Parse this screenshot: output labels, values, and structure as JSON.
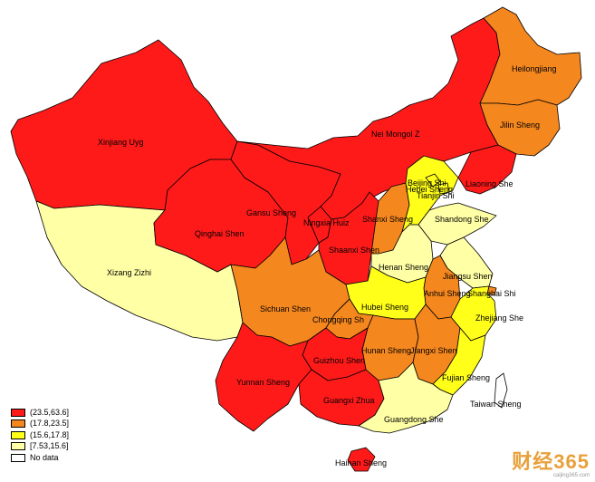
{
  "colors": {
    "class1": "#ff1a1a",
    "class2": "#f5871f",
    "class3": "#ffff1a",
    "class4": "#ffffa5",
    "nodata": "#ffffff"
  },
  "legend": [
    {
      "label": "(23.5,63.6]",
      "class": "class1"
    },
    {
      "label": "(17.8,23.5]",
      "class": "class2"
    },
    {
      "label": "(15.6,17.8]",
      "class": "class3"
    },
    {
      "label": "[7.53,15.6]",
      "class": "class4"
    },
    {
      "label": "No data",
      "class": "nodata"
    }
  ],
  "provinces": {
    "heilongjiang": {
      "label": "Heilongjiang",
      "class": "class2"
    },
    "jilin": {
      "label": "Jilin Sheng",
      "class": "class2"
    },
    "liaoning": {
      "label": "Liaoning She",
      "class": "class1"
    },
    "neimongol": {
      "label": "Nei Mongol Z",
      "class": "class1"
    },
    "xinjiang": {
      "label": "Xinjiang Uyg",
      "class": "class1"
    },
    "xizang": {
      "label": "Xizang Zizhi",
      "class": "class4"
    },
    "qinghai": {
      "label": "Qinghai Shen",
      "class": "class1"
    },
    "gansu": {
      "label": "Gansu Sheng",
      "class": "class1"
    },
    "ningxia": {
      "label": "Ningxia Huiz",
      "class": "class1"
    },
    "shaanxi": {
      "label": "Shaanxi Shen",
      "class": "class1"
    },
    "shanxi": {
      "label": "Shanxi Sheng",
      "class": "class2"
    },
    "beijing": {
      "label": "Beijing Shi",
      "class": "class3"
    },
    "tianjin": {
      "label": "Tianjin Shi",
      "class": "class3"
    },
    "hebei": {
      "label": "Hebei Sheng",
      "class": "class3"
    },
    "shandong": {
      "label": "Shandong She",
      "class": "class4"
    },
    "henan": {
      "label": "Henan Sheng",
      "class": "class4"
    },
    "jiangsu": {
      "label": "Jiangsu Shen",
      "class": "class4"
    },
    "anhui": {
      "label": "Anhui Sheng",
      "class": "class2"
    },
    "shanghai": {
      "label": "Shanghai Shi",
      "class": "class2"
    },
    "hubei": {
      "label": "Hubei Sheng",
      "class": "class3"
    },
    "zhejiang": {
      "label": "Zhejiang She",
      "class": "class3"
    },
    "sichuan": {
      "label": "Sichuan Shen",
      "class": "class2"
    },
    "chongqing": {
      "label": "Chongqing Sh",
      "class": "class2"
    },
    "hunan": {
      "label": "Hunan Sheng",
      "class": "class2"
    },
    "jiangxi": {
      "label": "Jiangxi Shen",
      "class": "class2"
    },
    "guizhou": {
      "label": "Guizhou Shen",
      "class": "class1"
    },
    "yunnan": {
      "label": "Yunnan Sheng",
      "class": "class1"
    },
    "guangxi": {
      "label": "Guangxi Zhua",
      "class": "class1"
    },
    "guangdong": {
      "label": "Guangdong She",
      "class": "class4"
    },
    "fujian": {
      "label": "Fujian Sheng",
      "class": "class3"
    },
    "taiwan": {
      "label": "Taiwan Sheng",
      "class": "nodata"
    },
    "hainan": {
      "label": "Hainan Sheng",
      "class": "class1"
    }
  },
  "watermark": {
    "text": "财经365",
    "url": "caijing365.com"
  }
}
